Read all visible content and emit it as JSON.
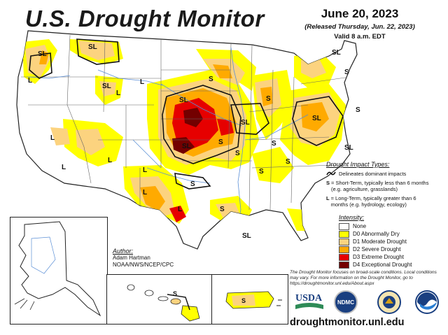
{
  "title": "U.S. Drought Monitor",
  "date": "June 20, 2023",
  "released": "(Released Thursday, Jun. 22, 2023)",
  "valid": "Valid 8 a.m. EDT",
  "impact": {
    "header": "Drought Impact Types:",
    "delineates": "Delineates dominant impacts",
    "s_key": "S",
    "s_text": "= Short-Term, typically less than 6 months (e.g. agriculture, grasslands)",
    "l_key": "L",
    "l_text": "= Long-Term, typically greater than 6 months (e.g. hydrology, ecology)"
  },
  "intensity": {
    "header": "Intensity:",
    "items": [
      {
        "label": "None",
        "color": "#ffffff"
      },
      {
        "label": "D0 Abnormally Dry",
        "color": "#ffff00"
      },
      {
        "label": "D1 Moderate Drought",
        "color": "#fcd37f"
      },
      {
        "label": "D2 Severe Drought",
        "color": "#ffaa00"
      },
      {
        "label": "D3 Extreme Drought",
        "color": "#e60000"
      },
      {
        "label": "D4 Exceptional Drought",
        "color": "#730000"
      }
    ]
  },
  "author": {
    "header": "Author:",
    "name": "Adam Hartman",
    "org": "NOAA/NWS/NCEP/CPC"
  },
  "note": "The Drought Monitor focuses on broad-scale conditions. Local conditions may vary. For more information on the Drought Monitor, go to https://droughtmonitor.unl.edu/About.aspx",
  "logos": {
    "usda": "USDA",
    "ndmc": "NDMC"
  },
  "website": "droughtmonitor.unl.edu",
  "map_labels": {
    "sl": "SL",
    "s": "S",
    "l": "L"
  }
}
